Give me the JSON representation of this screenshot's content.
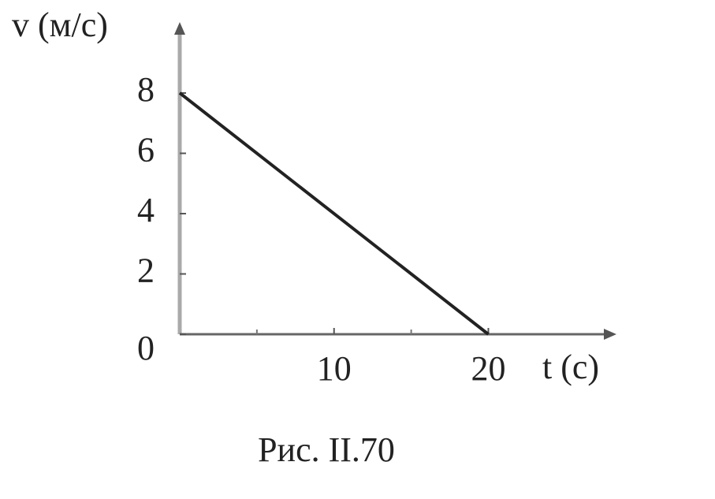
{
  "chart_data": {
    "type": "line",
    "ylabel": "v (м/с)",
    "xlabel": "t (с)",
    "caption": "Рис. II.70",
    "x": [
      0,
      20
    ],
    "series": [
      {
        "color": "#222222",
        "values": [
          8,
          0
        ]
      }
    ],
    "xlim": [
      0,
      28.2
    ],
    "ylim": [
      0,
      10.3
    ],
    "xticks": [
      10,
      20
    ],
    "xminorticks": [
      5,
      15
    ],
    "yticks": [
      0,
      2,
      4,
      6,
      8
    ]
  }
}
